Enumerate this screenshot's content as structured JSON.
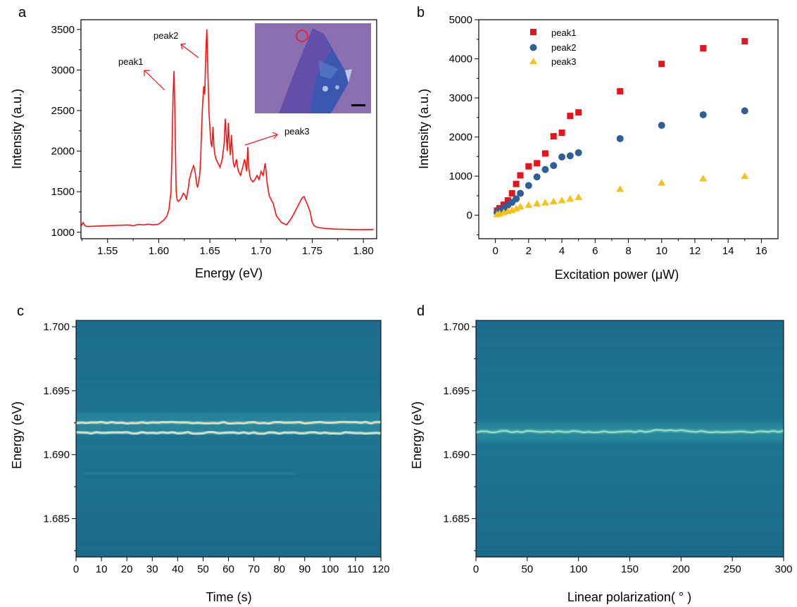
{
  "colors": {
    "spectrum": "#ff1010",
    "peak1": "#e8141c",
    "peak2": "#2e5f99",
    "peak3": "#f5c21b",
    "heatmap_bg": "#1f7090",
    "heatmap_line": "#e8e0c8",
    "inset_bg": "#8c6fb0",
    "inset_flake": "#3a58b0"
  },
  "panels": {
    "a": {
      "letter": "a"
    },
    "b": {
      "letter": "b"
    },
    "c": {
      "letter": "c"
    },
    "d": {
      "letter": "d"
    }
  },
  "chart_data": [
    {
      "type": "line",
      "panel": "a",
      "title": "",
      "xlabel": "Energy (eV)",
      "ylabel": "Intensity (a.u.)",
      "xlim": [
        1.524,
        1.813
      ],
      "ylim": [
        920,
        3620
      ],
      "xticks": [
        "1.55",
        "1.60",
        "1.65",
        "1.70",
        "1.75",
        "1.80"
      ],
      "xtick_values": [
        1.55,
        1.6,
        1.65,
        1.7,
        1.75,
        1.8
      ],
      "yticks": [
        "1000",
        "1500",
        "2000",
        "2500",
        "3000",
        "3500"
      ],
      "ytick_values": [
        1000,
        1500,
        2000,
        2500,
        3000,
        3500
      ],
      "series": [
        {
          "x": [
            1.524,
            1.526,
            1.528,
            1.53,
            1.54,
            1.55,
            1.56,
            1.57,
            1.575,
            1.58,
            1.585,
            1.59,
            1.595,
            1.6,
            1.605,
            1.608,
            1.61,
            1.612,
            1.613,
            1.614,
            1.615,
            1.616,
            1.617,
            1.618,
            1.619,
            1.62,
            1.622,
            1.624,
            1.626,
            1.627,
            1.628,
            1.629,
            1.63,
            1.632,
            1.634,
            1.635,
            1.636,
            1.637,
            1.638,
            1.64,
            1.641,
            1.642,
            1.643,
            1.644,
            1.645,
            1.646,
            1.647,
            1.648,
            1.649,
            1.65,
            1.651,
            1.652,
            1.653,
            1.654,
            1.655,
            1.656,
            1.658,
            1.66,
            1.662,
            1.664,
            1.665,
            1.666,
            1.667,
            1.668,
            1.669,
            1.67,
            1.671,
            1.672,
            1.673,
            1.674,
            1.675,
            1.676,
            1.677,
            1.678,
            1.68,
            1.682,
            1.684,
            1.686,
            1.687,
            1.688,
            1.689,
            1.69,
            1.692,
            1.694,
            1.696,
            1.698,
            1.7,
            1.702,
            1.704,
            1.705,
            1.706,
            1.708,
            1.71,
            1.712,
            1.715,
            1.72,
            1.725,
            1.73,
            1.735,
            1.74,
            1.742,
            1.745,
            1.748,
            1.75,
            1.752,
            1.755,
            1.76,
            1.765,
            1.77,
            1.775,
            1.78,
            1.79,
            1.8,
            1.81
          ],
          "y": [
            1070,
            1120,
            1080,
            1070,
            1075,
            1080,
            1085,
            1090,
            1080,
            1095,
            1090,
            1100,
            1090,
            1100,
            1150,
            1200,
            1280,
            1500,
            2000,
            2700,
            2990,
            2300,
            1500,
            1400,
            1380,
            1390,
            1420,
            1480,
            1450,
            1400,
            1480,
            1550,
            1650,
            1750,
            1820,
            1780,
            1700,
            1600,
            1550,
            1700,
            1900,
            2300,
            2600,
            2800,
            2700,
            3200,
            3500,
            3000,
            2500,
            2300,
            2100,
            2050,
            2300,
            2050,
            1950,
            1900,
            1850,
            1800,
            1900,
            2100,
            2400,
            2200,
            2000,
            2350,
            2100,
            1950,
            2200,
            2000,
            1850,
            1800,
            1850,
            1900,
            1800,
            1750,
            1700,
            1800,
            1900,
            1750,
            2050,
            1800,
            1700,
            1650,
            1620,
            1650,
            1700,
            1650,
            1750,
            1700,
            1850,
            1750,
            1600,
            1450,
            1400,
            1350,
            1200,
            1120,
            1090,
            1180,
            1300,
            1420,
            1440,
            1350,
            1250,
            1120,
            1080,
            1060,
            1050,
            1045,
            1040,
            1038,
            1036,
            1034,
            1032,
            1035
          ]
        }
      ],
      "annotations": [
        "peak1",
        "peak2",
        "peak3"
      ]
    },
    {
      "type": "scatter",
      "panel": "b",
      "title": "",
      "xlabel": "Excitation power (μW)",
      "ylabel": "Intensity (a.u.)",
      "xlim": [
        -1,
        17
      ],
      "ylim": [
        -600,
        5000
      ],
      "xticks": [
        "0",
        "2",
        "4",
        "6",
        "8",
        "10",
        "12",
        "14",
        "16"
      ],
      "xtick_values": [
        0,
        2,
        4,
        6,
        8,
        10,
        12,
        14,
        16
      ],
      "yticks": [
        "0",
        "1000",
        "2000",
        "3000",
        "4000",
        "5000"
      ],
      "ytick_values": [
        0,
        1000,
        2000,
        3000,
        4000,
        5000
      ],
      "legend_position": "top-left",
      "series": [
        {
          "name": "peak1",
          "marker": "square",
          "x": [
            0.1,
            0.25,
            0.5,
            0.75,
            1,
            1.25,
            1.5,
            2,
            2.5,
            3,
            3.5,
            4,
            4.5,
            5,
            7.5,
            10,
            12.5,
            15
          ],
          "y": [
            120,
            180,
            270,
            380,
            560,
            800,
            1020,
            1250,
            1330,
            1580,
            2020,
            2110,
            2540,
            2630,
            3170,
            3870,
            4270,
            4450
          ]
        },
        {
          "name": "peak2",
          "marker": "circle",
          "x": [
            0.1,
            0.25,
            0.5,
            0.75,
            1,
            1.25,
            1.5,
            2,
            2.5,
            3,
            3.5,
            4,
            4.5,
            5,
            7.5,
            10,
            12.5,
            15
          ],
          "y": [
            70,
            120,
            180,
            260,
            330,
            420,
            560,
            760,
            980,
            1170,
            1270,
            1490,
            1520,
            1600,
            1960,
            2300,
            2570,
            2670
          ]
        },
        {
          "name": "peak3",
          "marker": "triangle",
          "x": [
            0.1,
            0.25,
            0.5,
            0.75,
            1,
            1.25,
            1.5,
            2,
            2.5,
            3,
            3.5,
            4,
            4.5,
            5,
            7.5,
            10,
            12.5,
            15
          ],
          "y": [
            20,
            40,
            70,
            100,
            130,
            170,
            220,
            260,
            300,
            320,
            350,
            380,
            420,
            460,
            670,
            830,
            940,
            1000
          ]
        }
      ]
    },
    {
      "type": "heatmap",
      "panel": "c",
      "title": "",
      "xlabel": "Time (s)",
      "ylabel": "Energy (eV)",
      "xlim": [
        0,
        120
      ],
      "ylim": [
        1.682,
        1.7005
      ],
      "xticks": [
        "0",
        "10",
        "20",
        "30",
        "40",
        "50",
        "60",
        "70",
        "80",
        "90",
        "100",
        "110",
        "120"
      ],
      "xtick_values": [
        0,
        10,
        20,
        30,
        40,
        50,
        60,
        70,
        80,
        90,
        100,
        110,
        120
      ],
      "yticks": [
        "1.685",
        "1.690",
        "1.695",
        "1.700"
      ],
      "ytick_values": [
        1.685,
        1.69,
        1.695,
        1.7
      ],
      "bright_lines_eV": [
        1.6925,
        1.6917
      ],
      "faint_line_eV": 1.6885
    },
    {
      "type": "heatmap",
      "panel": "d",
      "title": "",
      "xlabel": "Linear polarization( ° )",
      "ylabel": "Energy (eV)",
      "xlim": [
        0,
        300
      ],
      "ylim": [
        1.682,
        1.7005
      ],
      "xticks": [
        "0",
        "50",
        "100",
        "150",
        "200",
        "250",
        "300"
      ],
      "xtick_values": [
        0,
        50,
        100,
        150,
        200,
        250,
        300
      ],
      "yticks": [
        "1.685",
        "1.690",
        "1.695",
        "1.700"
      ],
      "ytick_values": [
        1.685,
        1.69,
        1.695,
        1.7
      ],
      "bright_lines_eV": [
        1.6918
      ]
    }
  ]
}
